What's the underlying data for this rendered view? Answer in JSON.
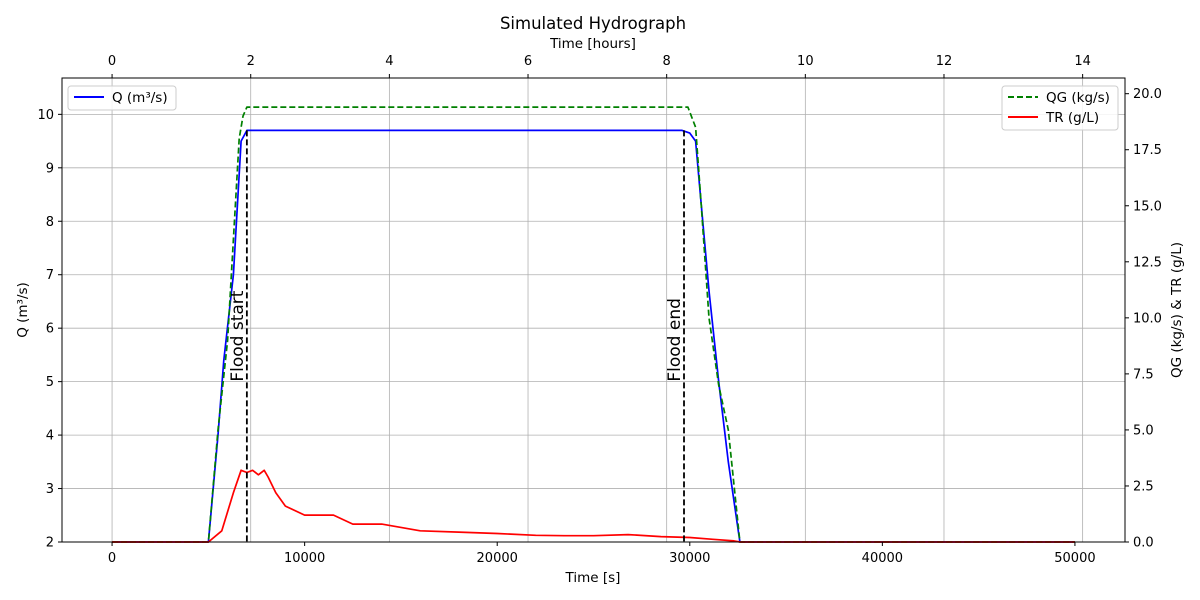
{
  "chart_data": {
    "type": "line",
    "title": "Simulated Hydrograph",
    "xlabel": "Time [s]",
    "xlabel_top": "Time [hours]",
    "ylabel_left": "Q (m³/s)",
    "ylabel_right": "QG (kg/s) & TR (g/L)",
    "xlim": [
      -2600,
      52600
    ],
    "ylim_left": [
      2.0,
      10.68
    ],
    "ylim_right": [
      0.0,
      20.7
    ],
    "x_ticks": [
      0,
      10000,
      20000,
      30000,
      40000,
      50000
    ],
    "x_ticks_top_hours": [
      0,
      2,
      4,
      6,
      8,
      10,
      12,
      14
    ],
    "y_ticks_left": [
      2,
      3,
      4,
      5,
      6,
      7,
      8,
      9,
      10
    ],
    "y_ticks_right": [
      0.0,
      2.5,
      5.0,
      7.5,
      10.0,
      12.5,
      15.0,
      17.5,
      20.0
    ],
    "grid": true,
    "legend_left": {
      "placement": "top-left",
      "entries": [
        "Q (m³/s)"
      ]
    },
    "legend_right": {
      "placement": "top-right",
      "entries": [
        "QG (kg/s)",
        "TR (g/L)"
      ]
    },
    "series": [
      {
        "name": "Q (m³/s)",
        "axis": "left",
        "color": "#0000ff",
        "style": "solid",
        "x": [
          0,
          5000,
          5500,
          5800,
          6300,
          6700,
          7000,
          7200,
          29600,
          30000,
          30300,
          30600,
          31000,
          31500,
          32000,
          32600,
          50000
        ],
        "y": [
          2.0,
          2.0,
          4.0,
          5.4,
          7.0,
          9.5,
          9.7,
          9.7,
          9.7,
          9.65,
          9.5,
          8.3,
          6.7,
          5.0,
          3.5,
          2.0,
          2.0
        ]
      },
      {
        "name": "QG (kg/s)",
        "axis": "right",
        "color": "#008000",
        "style": "dashed",
        "x": [
          0,
          5000,
          5500,
          6000,
          6600,
          6800,
          7000,
          7200,
          29900,
          30300,
          30600,
          31000,
          31500,
          32000,
          32600,
          50000
        ],
        "y": [
          0.0,
          0.0,
          5.0,
          9.0,
          18.0,
          19.0,
          19.4,
          19.4,
          19.4,
          18.5,
          15.0,
          10.0,
          7.0,
          5.0,
          0.0,
          0.0
        ]
      },
      {
        "name": "TR (g/L)",
        "axis": "right",
        "color": "#ff0000",
        "style": "solid",
        "x": [
          0,
          5000,
          5700,
          6300,
          6700,
          7000,
          7300,
          7600,
          7900,
          8100,
          8500,
          9000,
          10000,
          11500,
          12500,
          14000,
          16000,
          18000,
          20000,
          22000,
          23500,
          25000,
          26800,
          28500,
          30000,
          31200,
          32300,
          32600,
          50000
        ],
        "y": [
          0.0,
          0.0,
          0.5,
          2.2,
          3.2,
          3.1,
          3.2,
          3.0,
          3.2,
          2.9,
          2.2,
          1.6,
          1.2,
          1.2,
          0.8,
          0.8,
          0.5,
          0.44,
          0.38,
          0.3,
          0.28,
          0.28,
          0.33,
          0.24,
          0.2,
          0.12,
          0.05,
          0.0,
          0.0
        ]
      }
    ],
    "vlines": [
      {
        "label": "Flood start",
        "x": 7000,
        "color": "#000000",
        "style": "dashed"
      },
      {
        "label": "Flood end",
        "x": 29700,
        "color": "#000000",
        "style": "dashed"
      }
    ]
  }
}
